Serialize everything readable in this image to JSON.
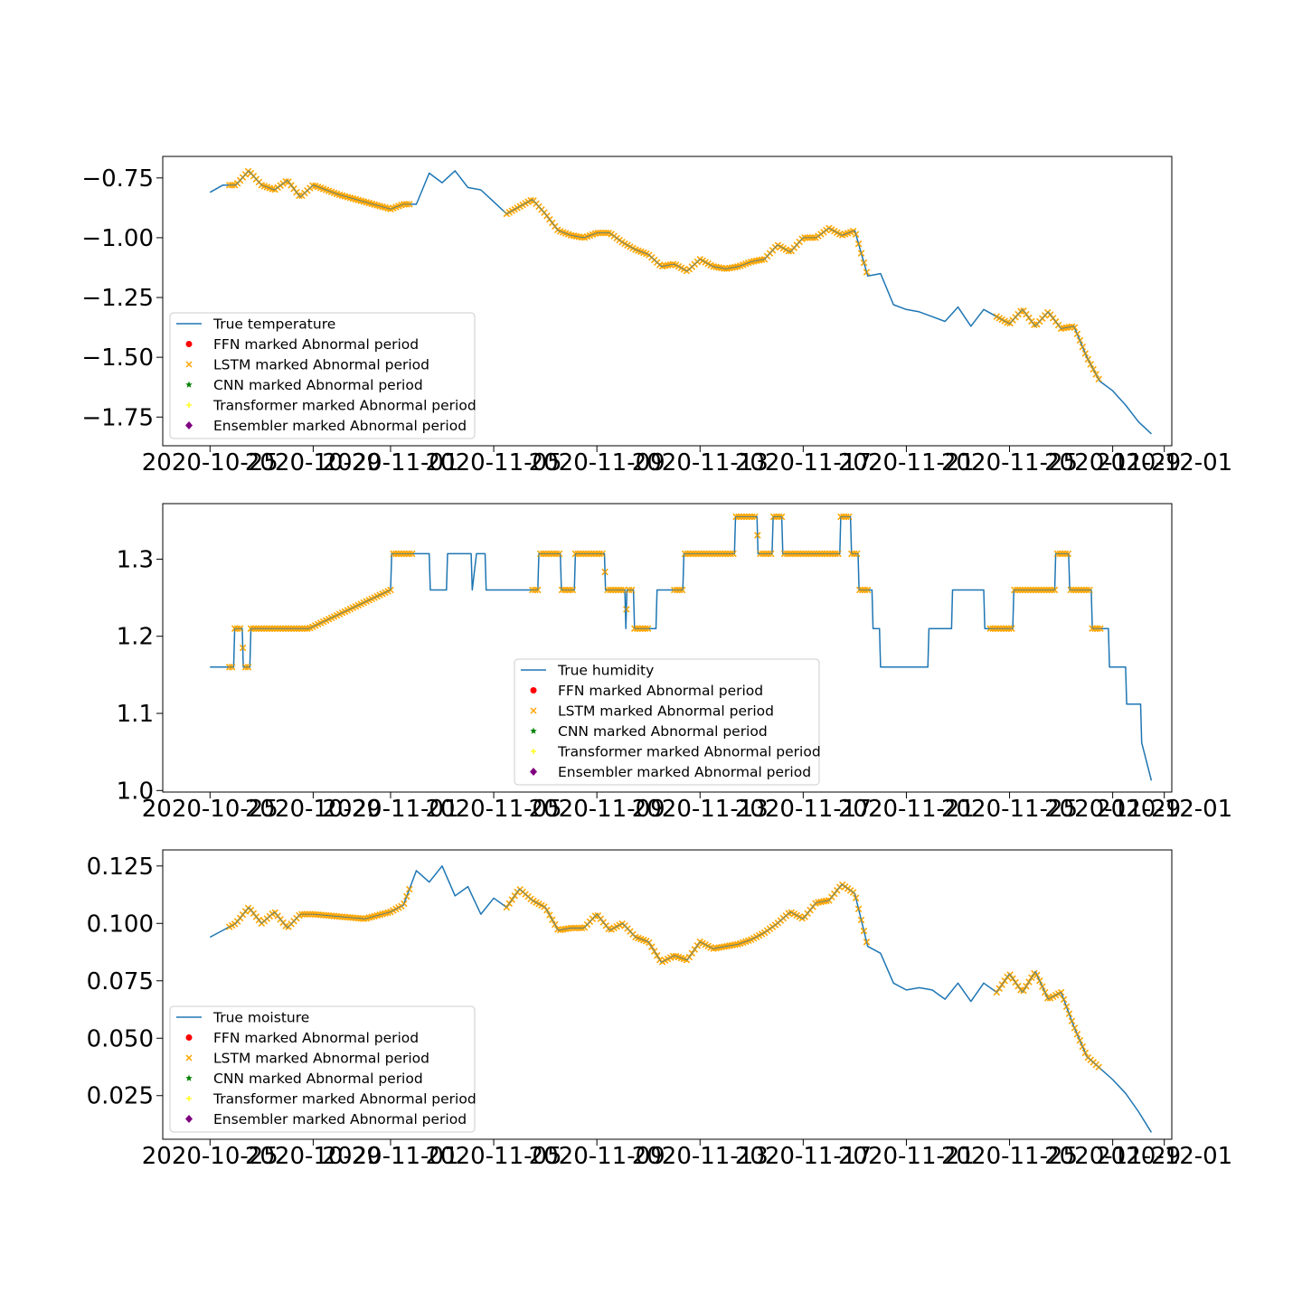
{
  "x_tick_labels": [
    "2020-10-25",
    "2020-10-29",
    "2020-11-01",
    "2020-11-05",
    "2020-11-09",
    "2020-11-13",
    "2020-11-17",
    "2020-11-21",
    "2020-11-25",
    "2020-11-29",
    "2020-12-01"
  ],
  "colors": {
    "line": "#1f77b4",
    "ffn": "#ff0000",
    "lstm": "#ffa500",
    "cnn": "#008000",
    "transformer": "#ffff00",
    "ensembler": "#800080"
  },
  "chart_data": [
    {
      "type": "line",
      "ylim": [
        -1.87,
        -0.66
      ],
      "yticks": [
        -0.75,
        -1.0,
        -1.25,
        -1.5,
        -1.75
      ],
      "ytick_labels": [
        "−0.75",
        "−1.00",
        "−1.25",
        "−1.50",
        "−1.75"
      ],
      "xlim": [
        "2020-10-23T04:00",
        "2020-12-01T07:00"
      ],
      "legend_position": "lower-left",
      "legend": [
        "True temperature",
        "FFN marked Abnormal period",
        "LSTM marked Abnormal period",
        "CNN marked Abnormal period",
        "Transformer marked Abnormal period",
        "Ensembler marked Abnormal period"
      ],
      "series": [
        {
          "name": "True temperature",
          "x": [
            "2020-10-25T00:00",
            "2020-10-25T12:00",
            "2020-10-26T00:00",
            "2020-10-26T12:00",
            "2020-10-27T00:00",
            "2020-10-27T12:00",
            "2020-10-28T00:00",
            "2020-10-28T12:00",
            "2020-10-29T00:00",
            "2020-10-30T00:00",
            "2020-10-31T00:00",
            "2020-11-01T00:00",
            "2020-11-01T12:00",
            "2020-11-02T00:00",
            "2020-11-02T12:00",
            "2020-11-03T00:00",
            "2020-11-03T12:00",
            "2020-11-04T00:00",
            "2020-11-04T12:00",
            "2020-11-05T00:00",
            "2020-11-05T12:00",
            "2020-11-06T00:00",
            "2020-11-06T12:00",
            "2020-11-07T00:00",
            "2020-11-07T12:00",
            "2020-11-08T00:00",
            "2020-11-08T12:00",
            "2020-11-09T00:00",
            "2020-11-09T12:00",
            "2020-11-10T00:00",
            "2020-11-10T12:00",
            "2020-11-11T00:00",
            "2020-11-11T12:00",
            "2020-11-12T00:00",
            "2020-11-12T12:00",
            "2020-11-13T00:00",
            "2020-11-13T12:00",
            "2020-11-14T00:00",
            "2020-11-14T12:00",
            "2020-11-15T00:00",
            "2020-11-15T12:00",
            "2020-11-16T00:00",
            "2020-11-16T12:00",
            "2020-11-17T00:00",
            "2020-11-17T12:00",
            "2020-11-18T00:00",
            "2020-11-18T12:00",
            "2020-11-19T00:00",
            "2020-11-19T12:00",
            "2020-11-20T00:00",
            "2020-11-20T12:00",
            "2020-11-21T00:00",
            "2020-11-21T12:00",
            "2020-11-22T00:00",
            "2020-11-22T12:00",
            "2020-11-23T00:00",
            "2020-11-23T12:00",
            "2020-11-24T00:00",
            "2020-11-24T12:00",
            "2020-11-25T00:00",
            "2020-11-25T12:00",
            "2020-11-26T00:00",
            "2020-11-26T12:00",
            "2020-11-27T00:00",
            "2020-11-27T12:00",
            "2020-11-28T00:00",
            "2020-11-28T12:00",
            "2020-11-29T00:00",
            "2020-11-29T12:00",
            "2020-11-30T00:00",
            "2020-11-30T12:00"
          ],
          "y": [
            -0.81,
            -0.78,
            -0.78,
            -0.72,
            -0.78,
            -0.8,
            -0.76,
            -0.83,
            -0.78,
            -0.82,
            -0.85,
            -0.88,
            -0.86,
            -0.86,
            -0.73,
            -0.77,
            -0.72,
            -0.79,
            -0.8,
            -0.85,
            -0.9,
            -0.87,
            -0.84,
            -0.9,
            -0.97,
            -0.99,
            -1.0,
            -0.98,
            -0.98,
            -1.02,
            -1.05,
            -1.07,
            -1.12,
            -1.11,
            -1.14,
            -1.09,
            -1.12,
            -1.13,
            -1.12,
            -1.1,
            -1.09,
            -1.03,
            -1.06,
            -1.0,
            -1.0,
            -0.96,
            -0.99,
            -0.97,
            -1.16,
            -1.15,
            -1.28,
            -1.3,
            -1.31,
            -1.33,
            -1.35,
            -1.29,
            -1.37,
            -1.3,
            -1.33,
            -1.36,
            -1.3,
            -1.37,
            -1.31,
            -1.38,
            -1.37,
            -1.5,
            -1.6,
            -1.64,
            -1.7,
            -1.77,
            -1.82
          ]
        }
      ],
      "lstm_marked_periods": [
        [
          "2020-10-25T18:00",
          "2020-11-01T18:00"
        ],
        [
          "2020-11-05T12:00",
          "2020-11-19T12:00"
        ],
        [
          "2020-11-24T12:00",
          "2020-11-28T12:00"
        ]
      ]
    },
    {
      "type": "line",
      "ylim": [
        0.998,
        1.372
      ],
      "yticks": [
        1.3,
        1.2,
        1.1,
        1.0
      ],
      "ytick_labels": [
        "1.3",
        "1.2",
        "1.1",
        "1.0"
      ],
      "xlim": [
        "2020-10-23T04:00",
        "2020-12-01T07:00"
      ],
      "legend_position": "lower-center",
      "legend": [
        "True humidity",
        "FFN marked Abnormal period",
        "LSTM marked Abnormal period",
        "CNN marked Abnormal period",
        "Transformer marked Abnormal period",
        "Ensembler marked Abnormal period"
      ],
      "series": [
        {
          "name": "True humidity",
          "x": [
            "2020-10-25T00:00",
            "2020-10-25T22:00",
            "2020-10-25T23:00",
            "2020-10-26T06:00",
            "2020-10-26T07:00",
            "2020-10-26T13:00",
            "2020-10-26T14:00",
            "2020-10-27T06:00",
            "2020-10-27T07:00",
            "2020-10-28T20:00",
            "2020-11-01T00:00",
            "2020-11-01T01:00",
            "2020-11-02T12:00",
            "2020-11-02T13:00",
            "2020-11-03T04:00",
            "2020-11-03T05:00",
            "2020-11-04T03:00",
            "2020-11-04T04:00",
            "2020-11-04T08:00",
            "2020-11-04T10:00",
            "2020-11-04T16:00",
            "2020-11-04T17:00",
            "2020-11-06T17:00",
            "2020-11-06T18:00",
            "2020-11-07T14:00",
            "2020-11-07T15:00",
            "2020-11-08T03:00",
            "2020-11-08T04:00",
            "2020-11-09T07:00",
            "2020-11-09T08:00",
            "2020-11-09T19:00",
            "2020-11-10T02:00",
            "2020-11-10T03:00",
            "2020-11-10T04:00",
            "2020-11-10T10:00",
            "2020-11-10T11:00",
            "2020-11-11T07:00",
            "2020-11-11T08:00",
            "2020-11-12T08:00",
            "2020-11-12T09:00",
            "2020-11-14T08:00",
            "2020-11-14T09:00",
            "2020-11-15T05:00",
            "2020-11-15T06:00",
            "2020-11-15T19:00",
            "2020-11-15T20:00",
            "2020-11-16T04:00",
            "2020-11-16T05:00",
            "2020-11-18T10:00",
            "2020-11-18T11:00",
            "2020-11-18T20:00",
            "2020-11-18T21:00",
            "2020-11-19T03:00",
            "2020-11-19T04:00",
            "2020-11-19T16:00",
            "2020-11-19T17:00",
            "2020-11-19T23:00",
            "2020-11-20T00:00",
            "2020-11-21T20:00",
            "2020-11-21T21:00",
            "2020-11-22T18:00",
            "2020-11-22T19:00",
            "2020-11-24T00:00",
            "2020-11-24T01:00",
            "2020-11-25T03:00",
            "2020-11-25T04:00",
            "2020-11-26T18:00",
            "2020-11-26T19:00",
            "2020-11-27T07:00",
            "2020-11-27T08:00",
            "2020-11-28T04:00",
            "2020-11-28T05:00",
            "2020-11-28T20:00",
            "2020-11-28T21:00",
            "2020-11-29T12:00",
            "2020-11-29T13:00",
            "2020-11-30T02:00",
            "2020-11-30T03:00",
            "2020-11-30T12:00"
          ],
          "y": [
            1.16,
            1.16,
            1.21,
            1.21,
            1.16,
            1.16,
            1.21,
            1.21,
            1.21,
            1.21,
            1.26,
            1.307,
            1.307,
            1.26,
            1.26,
            1.307,
            1.307,
            1.26,
            1.307,
            1.307,
            1.307,
            1.26,
            1.26,
            1.307,
            1.307,
            1.26,
            1.26,
            1.307,
            1.307,
            1.26,
            1.26,
            1.26,
            1.21,
            1.26,
            1.26,
            1.21,
            1.21,
            1.26,
            1.26,
            1.307,
            1.307,
            1.355,
            1.355,
            1.307,
            1.307,
            1.355,
            1.355,
            1.307,
            1.307,
            1.355,
            1.355,
            1.307,
            1.307,
            1.26,
            1.26,
            1.21,
            1.21,
            1.16,
            1.16,
            1.21,
            1.21,
            1.26,
            1.26,
            1.21,
            1.21,
            1.26,
            1.26,
            1.307,
            1.307,
            1.26,
            1.26,
            1.21,
            1.21,
            1.16,
            1.16,
            1.112,
            1.112,
            1.062,
            1.013
          ]
        }
      ],
      "lstm_marked_periods": [
        [
          "2020-10-25T18:00",
          "2020-11-01T22:00"
        ],
        [
          "2020-11-06T12:00",
          "2020-11-11T00:00"
        ],
        [
          "2020-11-12T00:00",
          "2020-11-19T12:00"
        ],
        [
          "2020-11-24T06:00",
          "2020-11-28T14:00"
        ]
      ]
    },
    {
      "type": "line",
      "ylim": [
        0.006,
        0.132
      ],
      "yticks": [
        0.125,
        0.1,
        0.075,
        0.05,
        0.025
      ],
      "ytick_labels": [
        "0.125",
        "0.100",
        "0.075",
        "0.050",
        "0.025"
      ],
      "xlim": [
        "2020-10-23T04:00",
        "2020-12-01T07:00"
      ],
      "legend_position": "lower-left",
      "legend": [
        "True moisture",
        "FFN marked Abnormal period",
        "LSTM marked Abnormal period",
        "CNN marked Abnormal period",
        "Transformer marked Abnormal period",
        "Ensembler marked Abnormal period"
      ],
      "series": [
        {
          "name": "True moisture",
          "x": [
            "2020-10-25T00:00",
            "2020-10-25T12:00",
            "2020-10-26T00:00",
            "2020-10-26T12:00",
            "2020-10-27T00:00",
            "2020-10-27T12:00",
            "2020-10-28T00:00",
            "2020-10-28T12:00",
            "2020-10-29T00:00",
            "2020-10-30T00:00",
            "2020-10-31T00:00",
            "2020-11-01T00:00",
            "2020-11-01T12:00",
            "2020-11-02T00:00",
            "2020-11-02T12:00",
            "2020-11-03T00:00",
            "2020-11-03T12:00",
            "2020-11-04T00:00",
            "2020-11-04T12:00",
            "2020-11-05T00:00",
            "2020-11-05T12:00",
            "2020-11-06T00:00",
            "2020-11-06T12:00",
            "2020-11-07T00:00",
            "2020-11-07T12:00",
            "2020-11-08T00:00",
            "2020-11-08T12:00",
            "2020-11-09T00:00",
            "2020-11-09T12:00",
            "2020-11-10T00:00",
            "2020-11-10T12:00",
            "2020-11-11T00:00",
            "2020-11-11T12:00",
            "2020-11-12T00:00",
            "2020-11-12T12:00",
            "2020-11-13T00:00",
            "2020-11-13T12:00",
            "2020-11-14T00:00",
            "2020-11-14T12:00",
            "2020-11-15T00:00",
            "2020-11-15T12:00",
            "2020-11-16T00:00",
            "2020-11-16T12:00",
            "2020-11-17T00:00",
            "2020-11-17T12:00",
            "2020-11-18T00:00",
            "2020-11-18T12:00",
            "2020-11-19T00:00",
            "2020-11-19T12:00",
            "2020-11-20T00:00",
            "2020-11-20T12:00",
            "2020-11-21T00:00",
            "2020-11-21T12:00",
            "2020-11-22T00:00",
            "2020-11-22T12:00",
            "2020-11-23T00:00",
            "2020-11-23T12:00",
            "2020-11-24T00:00",
            "2020-11-24T12:00",
            "2020-11-25T00:00",
            "2020-11-25T12:00",
            "2020-11-26T00:00",
            "2020-11-26T12:00",
            "2020-11-27T00:00",
            "2020-11-27T12:00",
            "2020-11-28T00:00",
            "2020-11-28T12:00",
            "2020-11-29T00:00",
            "2020-11-29T12:00",
            "2020-11-30T00:00",
            "2020-11-30T12:00"
          ],
          "y": [
            0.094,
            0.097,
            0.1,
            0.107,
            0.1,
            0.105,
            0.098,
            0.104,
            0.104,
            0.103,
            0.102,
            0.105,
            0.108,
            0.123,
            0.118,
            0.125,
            0.112,
            0.116,
            0.104,
            0.111,
            0.107,
            0.115,
            0.11,
            0.107,
            0.097,
            0.098,
            0.098,
            0.104,
            0.097,
            0.1,
            0.094,
            0.092,
            0.083,
            0.086,
            0.084,
            0.092,
            0.089,
            0.09,
            0.091,
            0.093,
            0.096,
            0.1,
            0.105,
            0.102,
            0.109,
            0.11,
            0.117,
            0.113,
            0.09,
            0.087,
            0.074,
            0.071,
            0.072,
            0.071,
            0.067,
            0.074,
            0.066,
            0.074,
            0.07,
            0.078,
            0.07,
            0.079,
            0.067,
            0.07,
            0.055,
            0.042,
            0.037,
            0.032,
            0.026,
            0.018,
            0.009
          ]
        }
      ],
      "lstm_marked_periods": [
        [
          "2020-10-25T18:00",
          "2020-11-01T18:00"
        ],
        [
          "2020-11-05T12:00",
          "2020-11-19T12:00"
        ],
        [
          "2020-11-24T12:00",
          "2020-11-28T12:00"
        ]
      ]
    }
  ]
}
